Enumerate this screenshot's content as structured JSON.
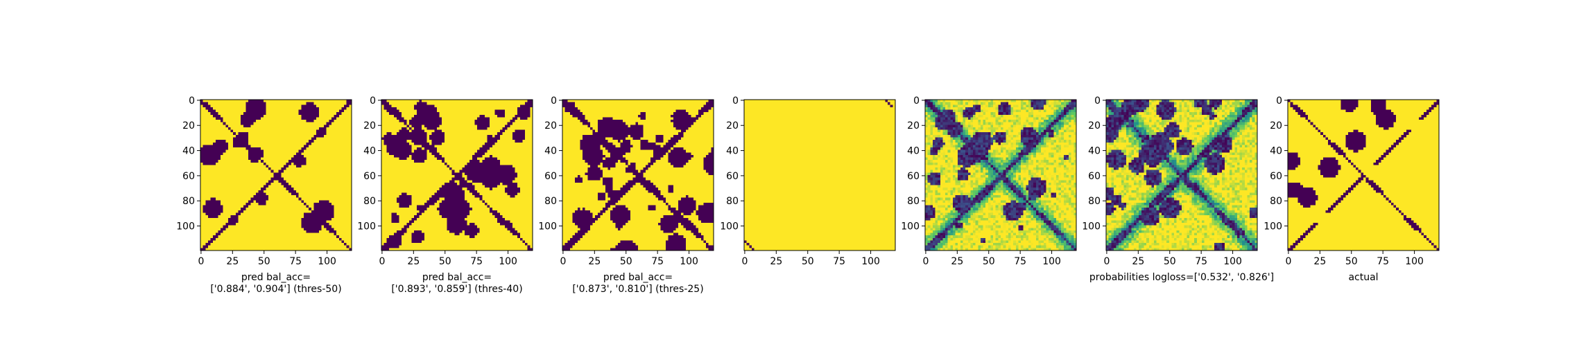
{
  "figure": {
    "background": "#ffffff",
    "colormap": "viridis",
    "colors": {
      "low": "#440154",
      "mid": "#21918c",
      "teal": "#1f9e89",
      "high": "#fde725"
    }
  },
  "chart_data": [
    {
      "type": "heatmap",
      "id": "thres50",
      "title": "",
      "xlabel_lines": [
        "pred bal_acc=",
        "['0.884', '0.904'] (thres-50)"
      ],
      "matrix_size": 120,
      "xticks": [
        "0",
        "25",
        "50",
        "75",
        "100"
      ],
      "yticks": [
        "0",
        "20",
        "40",
        "60",
        "80",
        "100"
      ],
      "tick_values_x": [
        0,
        25,
        50,
        75,
        100
      ],
      "tick_values_y": [
        0,
        20,
        40,
        60,
        80,
        100
      ],
      "value_range": [
        0,
        1
      ],
      "pattern": {
        "diag_width": 5,
        "anti_width": 5,
        "blob_density": 0.35,
        "continuous": false,
        "seed": 11
      }
    },
    {
      "type": "heatmap",
      "id": "thres40",
      "title": "",
      "xlabel_lines": [
        "pred bal_acc=",
        "['0.893', '0.859'] (thres-40)"
      ],
      "matrix_size": 120,
      "xticks": [
        "0",
        "25",
        "50",
        "75",
        "100"
      ],
      "yticks": [
        "0",
        "20",
        "40",
        "60",
        "80",
        "100"
      ],
      "tick_values_x": [
        0,
        25,
        50,
        75,
        100
      ],
      "tick_values_y": [
        0,
        20,
        40,
        60,
        80,
        100
      ],
      "value_range": [
        0,
        1
      ],
      "pattern": {
        "diag_width": 7,
        "anti_width": 7,
        "blob_density": 0.55,
        "continuous": false,
        "seed": 23
      }
    },
    {
      "type": "heatmap",
      "id": "thres25",
      "title": "",
      "xlabel_lines": [
        "pred bal_acc=",
        "['0.873', '0.810'] (thres-25)"
      ],
      "matrix_size": 120,
      "xticks": [
        "0",
        "25",
        "50",
        "75",
        "100"
      ],
      "yticks": [
        "0",
        "20",
        "40",
        "60",
        "80",
        "100"
      ],
      "tick_values_x": [
        0,
        25,
        50,
        75,
        100
      ],
      "tick_values_y": [
        0,
        20,
        40,
        60,
        80,
        100
      ],
      "value_range": [
        0,
        1
      ],
      "pattern": {
        "diag_width": 8,
        "anti_width": 8,
        "blob_density": 0.8,
        "continuous": false,
        "seed": 37
      }
    },
    {
      "type": "heatmap",
      "id": "sparse",
      "title": "",
      "xlabel_lines": [],
      "matrix_size": 120,
      "xticks": [
        "0",
        "25",
        "50",
        "75",
        "100"
      ],
      "yticks": [
        "0",
        "20",
        "40",
        "60",
        "80",
        "100"
      ],
      "tick_values_x": [
        0,
        25,
        50,
        75,
        100
      ],
      "tick_values_y": [
        0,
        20,
        40,
        60,
        80,
        100
      ],
      "value_range": [
        0,
        1
      ],
      "pattern": {
        "sparse_lines": [
          [
            0,
            112
          ],
          [
            0,
            -112
          ],
          [
            0,
            53
          ],
          [
            0,
            -53
          ]
        ],
        "continuous": false,
        "seed": 41
      }
    },
    {
      "type": "heatmap",
      "id": "continuous",
      "title": "",
      "xlabel_lines": [],
      "matrix_size": 120,
      "xticks": [
        "0",
        "25",
        "50",
        "75",
        "100"
      ],
      "yticks": [
        "0",
        "20",
        "40",
        "60",
        "80",
        "100"
      ],
      "tick_values_x": [
        0,
        25,
        50,
        75,
        100
      ],
      "tick_values_y": [
        0,
        20,
        40,
        60,
        80,
        100
      ],
      "value_range": [
        0,
        1
      ],
      "pattern": {
        "diag_width": 6,
        "anti_width": 6,
        "blob_density": 0.6,
        "continuous": true,
        "seed": 53
      }
    },
    {
      "type": "heatmap",
      "id": "probabilities",
      "title": "",
      "xlabel_lines": [
        "probabilities logloss=['0.532', '0.826']"
      ],
      "matrix_size": 120,
      "xticks": [
        "0",
        "25",
        "50",
        "75",
        "100"
      ],
      "yticks": [
        "0",
        "20",
        "40",
        "60",
        "80",
        "100"
      ],
      "tick_values_x": [
        0,
        25,
        50,
        75,
        100
      ],
      "tick_values_y": [
        0,
        20,
        40,
        60,
        80,
        100
      ],
      "value_range": [
        0,
        1
      ],
      "pattern": {
        "diag_width": 7,
        "anti_width": 7,
        "blob_density": 0.65,
        "continuous": true,
        "seed": 67
      }
    },
    {
      "type": "heatmap",
      "id": "actual",
      "title": "",
      "xlabel_lines": [
        "actual"
      ],
      "matrix_size": 120,
      "xticks": [
        "0",
        "25",
        "50",
        "75",
        "100"
      ],
      "yticks": [
        "0",
        "20",
        "40",
        "60",
        "80",
        "100"
      ],
      "tick_values_x": [
        0,
        25,
        50,
        75,
        100
      ],
      "tick_values_y": [
        0,
        20,
        40,
        60,
        80,
        100
      ],
      "value_range": [
        0,
        1
      ],
      "pattern": {
        "diag_width": 4,
        "anti_width": 4,
        "blob_density": 0.12,
        "continuous": false,
        "seed": 79
      }
    }
  ]
}
